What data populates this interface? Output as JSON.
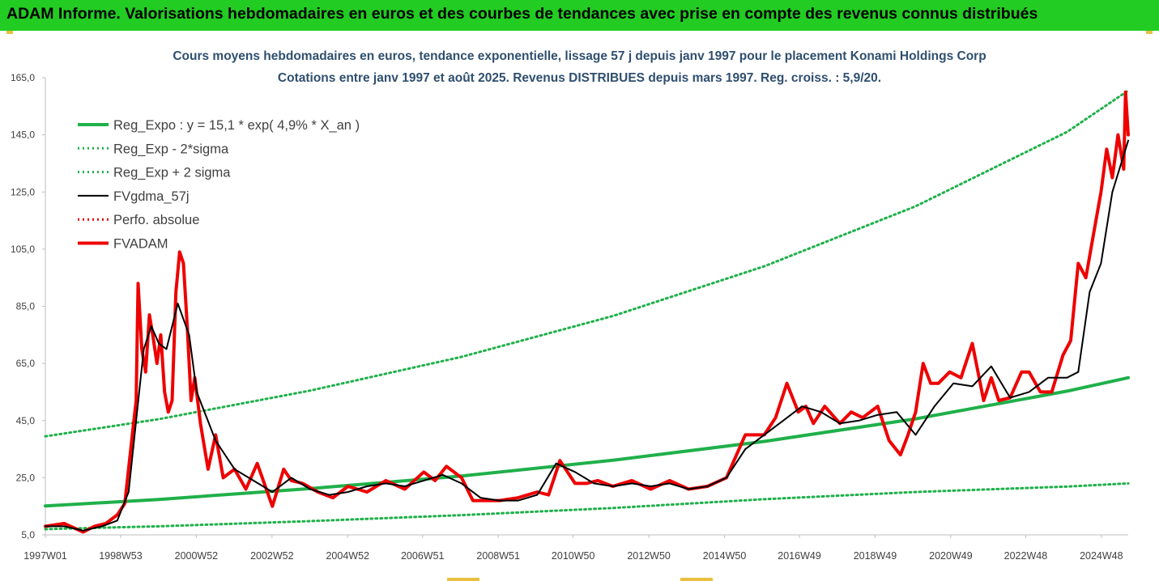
{
  "header": {
    "title": "ADAM Informe. Valorisations hebdomadaires en euros et des courbes de tendances avec prise en compte des revenus connus distribués"
  },
  "chart_data": {
    "type": "line",
    "title": "Cours moyens hebdomadaires en euros, tendance exponentielle, lissage 57 j depuis janv 1997 pour le placement Konami Holdings Corp",
    "subtitle": "Cotations entre janv 1997 et août 2025.  Revenus DISTRIBUES depuis mars 1997. Reg. croiss. : 5,9/20.",
    "xlabel": "",
    "ylabel": "",
    "ylim": [
      5,
      165
    ],
    "yticks": [
      "5,0",
      "25,0",
      "45,0",
      "65,0",
      "85,0",
      "105,0",
      "125,0",
      "145,0",
      "165,0"
    ],
    "xticks": [
      {
        "label": "1997W01",
        "year": 1997.0
      },
      {
        "label": "1998W53",
        "year": 1998.99
      },
      {
        "label": "2000W52",
        "year": 2000.99
      },
      {
        "label": "2002W52",
        "year": 2002.99
      },
      {
        "label": "2004W52",
        "year": 2004.99
      },
      {
        "label": "2006W51",
        "year": 2006.97
      },
      {
        "label": "2008W51",
        "year": 2008.97
      },
      {
        "label": "2010W50",
        "year": 2010.95
      },
      {
        "label": "2012W50",
        "year": 2012.95
      },
      {
        "label": "2014W50",
        "year": 2014.95
      },
      {
        "label": "2016W49",
        "year": 2016.93
      },
      {
        "label": "2018W49",
        "year": 2018.93
      },
      {
        "label": "2020W49",
        "year": 2020.93
      },
      {
        "label": "2022W48",
        "year": 2022.91
      },
      {
        "label": "2024W48",
        "year": 2024.91
      }
    ],
    "x_range": [
      1997.0,
      2025.62
    ],
    "legend_position": "top-left",
    "grid": false,
    "series": [
      {
        "name": "Reg_Expo : y = 15,1 * exp( 4,9% *  X_an )",
        "color": "#1fb04a",
        "style": "solid-thick",
        "x": [
          1997,
          2000,
          2004,
          2008,
          2012,
          2016,
          2020,
          2024,
          2025.62
        ],
        "values": [
          15.1,
          17.4,
          21.2,
          25.6,
          31.1,
          37.7,
          45.6,
          55.3,
          60.0
        ]
      },
      {
        "name": "Reg_Exp - 2*sigma",
        "color": "#1fb04a",
        "style": "dotted",
        "x": [
          1997,
          2000,
          2004,
          2008,
          2012,
          2016,
          2020,
          2024,
          2025.62
        ],
        "values": [
          7.0,
          8.0,
          9.8,
          11.9,
          14.4,
          17.5,
          20.0,
          21.9,
          23.0
        ]
      },
      {
        "name": "Reg_Exp + 2 sigma",
        "color": "#1fb04a",
        "style": "dotted",
        "x": [
          1997,
          2000,
          2004,
          2008,
          2012,
          2016,
          2020,
          2024,
          2025.62
        ],
        "values": [
          39.5,
          45.5,
          55.5,
          67.3,
          81.6,
          99.0,
          120.0,
          146.0,
          160.5
        ]
      },
      {
        "name": "FVgdma_57j",
        "color": "#000000",
        "style": "solid",
        "x": [
          1997,
          1997.5,
          1998.0,
          1998.5,
          1998.9,
          1999.2,
          1999.4,
          1999.6,
          1999.8,
          2000.0,
          2000.2,
          2000.5,
          2000.8,
          2001.0,
          2001.5,
          2002.0,
          2002.5,
          2003.0,
          2003.5,
          2004.0,
          2004.5,
          2005.0,
          2005.5,
          2006.0,
          2006.5,
          2007.0,
          2007.5,
          2008.0,
          2008.5,
          2009.0,
          2009.5,
          2010.0,
          2010.5,
          2011.0,
          2011.5,
          2012.0,
          2012.5,
          2013.0,
          2013.5,
          2014.0,
          2014.5,
          2015.0,
          2015.5,
          2016.0,
          2016.5,
          2017.0,
          2017.5,
          2018.0,
          2018.5,
          2019.0,
          2019.5,
          2020.0,
          2020.5,
          2021.0,
          2021.5,
          2022.0,
          2022.5,
          2023.0,
          2023.5,
          2024.0,
          2024.3,
          2024.6,
          2024.9,
          2025.2,
          2025.62
        ],
        "values": [
          8,
          8,
          6.5,
          8,
          10,
          20,
          45,
          70,
          78,
          72,
          70,
          86,
          75,
          55,
          38,
          28,
          24,
          20,
          25,
          21,
          19,
          20,
          22,
          23,
          22,
          24,
          26,
          23,
          18,
          17,
          17,
          19,
          30,
          27,
          23,
          22,
          23,
          22,
          23,
          21,
          22,
          25,
          35,
          40,
          45,
          50,
          48,
          44,
          45,
          47,
          48,
          40,
          50,
          58,
          57,
          64,
          53,
          55,
          60,
          60,
          62,
          90,
          100,
          125,
          143
        ]
      },
      {
        "name": "Perfo. absolue",
        "color": "#e00000",
        "style": "dotted",
        "x": [],
        "values": []
      },
      {
        "name": "FVADAM",
        "color": "#ee0000",
        "style": "solid-thick",
        "x": [
          1997,
          1997.5,
          1998.0,
          1998.3,
          1998.6,
          1998.9,
          1999.1,
          1999.3,
          1999.4,
          1999.45,
          1999.55,
          1999.65,
          1999.75,
          1999.85,
          1999.95,
          2000.05,
          2000.15,
          2000.25,
          2000.35,
          2000.45,
          2000.55,
          2000.65,
          2000.75,
          2000.85,
          2000.95,
          2001.1,
          2001.3,
          2001.5,
          2001.7,
          2002.0,
          2002.3,
          2002.6,
          2003.0,
          2003.3,
          2003.5,
          2003.8,
          2004.2,
          2004.6,
          2005.0,
          2005.5,
          2006.0,
          2006.5,
          2007.0,
          2007.3,
          2007.6,
          2008.0,
          2008.3,
          2008.6,
          2009.0,
          2009.5,
          2010.0,
          2010.3,
          2010.6,
          2010.8,
          2011.0,
          2011.3,
          2011.6,
          2012.0,
          2012.5,
          2013.0,
          2013.5,
          2014.0,
          2014.5,
          2015.0,
          2015.5,
          2016.0,
          2016.3,
          2016.6,
          2016.9,
          2017.1,
          2017.3,
          2017.6,
          2018.0,
          2018.3,
          2018.6,
          2019.0,
          2019.3,
          2019.6,
          2019.8,
          2020.0,
          2020.2,
          2020.4,
          2020.6,
          2020.9,
          2021.2,
          2021.5,
          2021.8,
          2022.0,
          2022.2,
          2022.5,
          2022.8,
          2023.0,
          2023.3,
          2023.6,
          2023.9,
          2024.1,
          2024.3,
          2024.5,
          2024.7,
          2024.9,
          2025.05,
          2025.2,
          2025.35,
          2025.5,
          2025.55,
          2025.62
        ],
        "values": [
          8,
          9,
          6,
          8,
          9,
          12,
          16,
          40,
          52,
          93,
          70,
          62,
          82,
          74,
          65,
          75,
          55,
          48,
          52,
          90,
          104,
          100,
          78,
          52,
          60,
          44,
          28,
          40,
          25,
          28,
          21,
          30,
          15,
          28,
          24,
          23,
          20,
          18,
          22,
          20,
          24,
          21,
          27,
          24,
          29,
          25,
          17,
          17,
          17,
          18,
          20,
          19,
          31,
          27,
          23,
          23,
          24,
          22,
          24,
          21,
          24,
          21,
          22,
          25,
          40,
          40,
          46,
          58,
          48,
          50,
          44,
          50,
          44,
          48,
          46,
          50,
          38,
          33,
          40,
          48,
          65,
          58,
          58,
          62,
          60,
          72,
          52,
          60,
          52,
          53,
          62,
          62,
          55,
          55,
          68,
          73,
          100,
          95,
          110,
          125,
          140,
          130,
          145,
          133,
          160,
          145
        ]
      }
    ]
  }
}
